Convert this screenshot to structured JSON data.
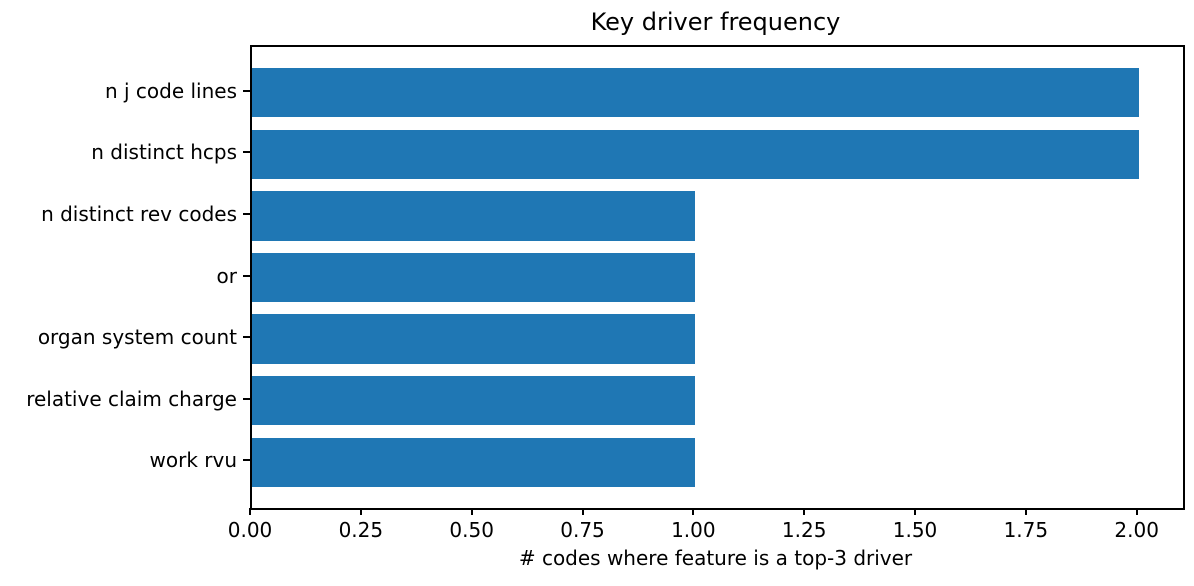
{
  "chart_data": {
    "type": "bar",
    "orientation": "horizontal",
    "title": "Key driver frequency",
    "xlabel": "# codes where feature is a top-3 driver",
    "ylabel": "",
    "categories": [
      "n j code lines",
      "n distinct hcps",
      "n distinct rev codes",
      "or",
      "organ system count",
      "relative claim charge",
      "work rvu"
    ],
    "values": [
      2,
      2,
      1,
      1,
      1,
      1,
      1
    ],
    "xlim": [
      0,
      2.1
    ],
    "xticks": [
      0,
      0.25,
      0.5,
      0.75,
      1,
      1.25,
      1.5,
      1.75,
      2
    ],
    "xtick_labels": [
      "0.00",
      "0.25",
      "0.50",
      "0.75",
      "1.00",
      "1.25",
      "1.50",
      "1.75",
      "2.00"
    ],
    "bar_color": "#1f77b4",
    "text_color": "#000000",
    "grid": false,
    "legend": null
  }
}
